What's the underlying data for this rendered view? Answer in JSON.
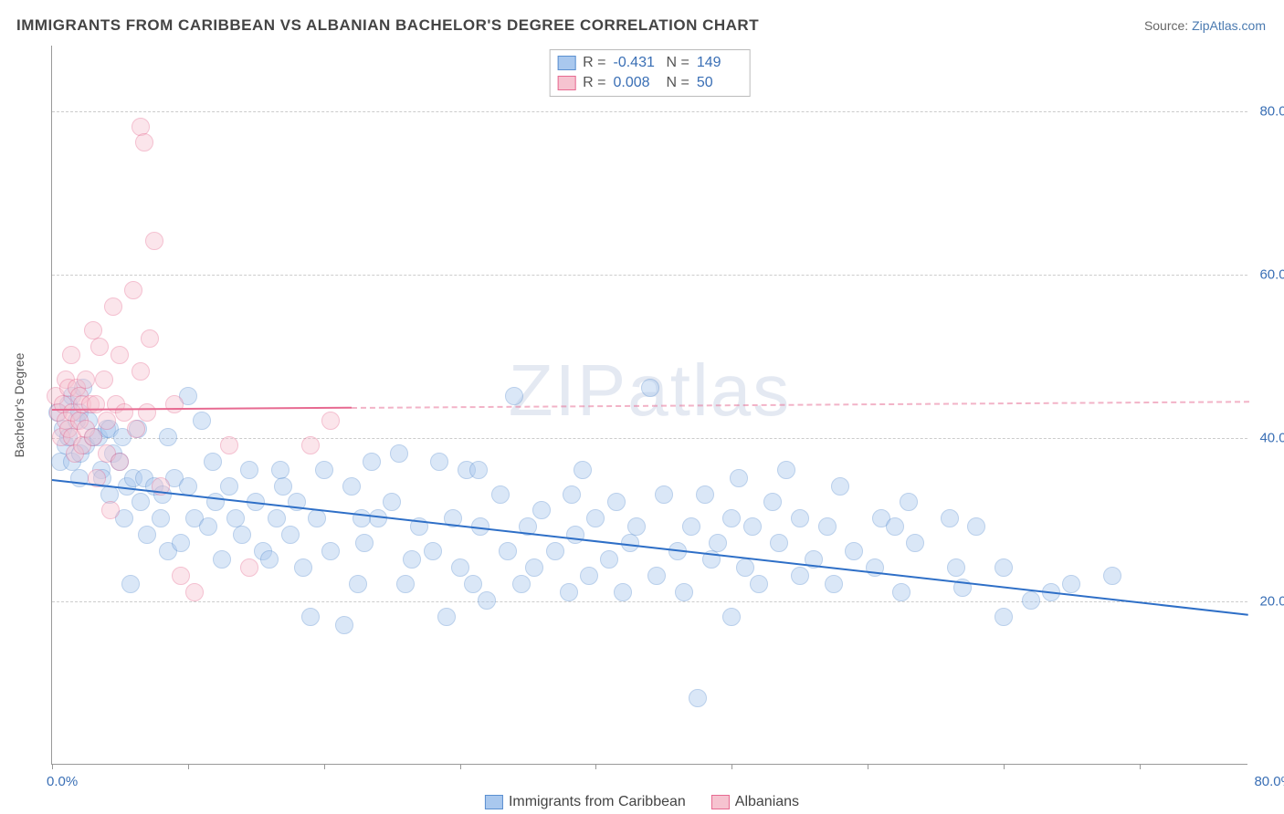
{
  "title": "IMMIGRANTS FROM CARIBBEAN VS ALBANIAN BACHELOR'S DEGREE CORRELATION CHART",
  "source_label": "Source:",
  "source_name": "ZipAtlas.com",
  "watermark": "ZIPatlas",
  "chart": {
    "type": "scatter",
    "y_axis_label": "Bachelor's Degree",
    "x_min": 0,
    "x_max": 88,
    "y_min": 0,
    "y_max": 88,
    "x_min_label": "0.0%",
    "x_max_label": "80.0%",
    "y_grid": [
      20,
      40,
      60,
      80
    ],
    "y_tick_labels": [
      "20.0%",
      "40.0%",
      "60.0%",
      "80.0%"
    ],
    "x_ticks": [
      0,
      10,
      20,
      30,
      40,
      50,
      60,
      70,
      80
    ],
    "marker_radius": 10,
    "marker_opacity": 0.42,
    "background_color": "#ffffff",
    "grid_color": "#cccccc",
    "axis_color": "#999999",
    "tick_label_color": "#3a6fb5",
    "series": [
      {
        "name": "Immigrants from Caribbean",
        "color_fill": "#a9c8ee",
        "color_stroke": "#5a8fd0",
        "R": "-0.431",
        "N": "149",
        "trend": {
          "x1": 0,
          "y1": 35,
          "x2": 88,
          "y2": 18.5,
          "color": "#2e6fc7",
          "solid_until_x": 88
        },
        "points": [
          [
            0.4,
            43
          ],
          [
            0.6,
            37
          ],
          [
            0.8,
            41
          ],
          [
            1.0,
            39
          ],
          [
            1.2,
            44
          ],
          [
            1.2,
            40
          ],
          [
            1.5,
            37
          ],
          [
            1.5,
            45
          ],
          [
            1.8,
            42
          ],
          [
            2.0,
            43
          ],
          [
            2.1,
            38
          ],
          [
            2.3,
            46
          ],
          [
            2.5,
            39
          ],
          [
            2.7,
            42
          ],
          [
            3.0,
            40
          ],
          [
            2.0,
            35
          ],
          [
            3.4,
            40
          ],
          [
            3.6,
            36
          ],
          [
            4.0,
            41
          ],
          [
            4.2,
            41
          ],
          [
            4.5,
            38
          ],
          [
            5.0,
            37
          ],
          [
            5.3,
            30
          ],
          [
            5.5,
            34
          ],
          [
            5.8,
            22
          ],
          [
            5.2,
            40
          ],
          [
            6.0,
            35
          ],
          [
            6.5,
            32
          ],
          [
            7.0,
            28
          ],
          [
            6.8,
            35
          ],
          [
            7.5,
            34
          ],
          [
            8.0,
            30
          ],
          [
            8.5,
            26
          ],
          [
            8.5,
            40
          ],
          [
            9.0,
            35
          ],
          [
            9.5,
            27
          ],
          [
            10.0,
            34
          ],
          [
            10.0,
            45
          ],
          [
            10.5,
            30
          ],
          [
            11.0,
            42
          ],
          [
            11.5,
            29
          ],
          [
            12.0,
            32
          ],
          [
            12.5,
            25
          ],
          [
            13.0,
            34
          ],
          [
            13.5,
            30
          ],
          [
            14.0,
            28
          ],
          [
            14.5,
            36
          ],
          [
            15.0,
            32
          ],
          [
            15.5,
            26
          ],
          [
            16.0,
            25
          ],
          [
            16.5,
            30
          ],
          [
            17.0,
            34
          ],
          [
            17.5,
            28
          ],
          [
            18.0,
            32
          ],
          [
            18.5,
            24
          ],
          [
            19.0,
            18
          ],
          [
            19.5,
            30
          ],
          [
            20.0,
            36
          ],
          [
            20.5,
            26
          ],
          [
            21.5,
            17
          ],
          [
            22.0,
            34
          ],
          [
            22.5,
            22
          ],
          [
            23.0,
            27
          ],
          [
            23.5,
            37
          ],
          [
            24.0,
            30
          ],
          [
            25.0,
            32
          ],
          [
            25.5,
            38
          ],
          [
            26.0,
            22
          ],
          [
            26.5,
            25
          ],
          [
            27.0,
            29
          ],
          [
            28.0,
            26
          ],
          [
            28.5,
            37
          ],
          [
            29.0,
            18
          ],
          [
            29.5,
            30
          ],
          [
            30.0,
            24
          ],
          [
            30.5,
            36
          ],
          [
            31.0,
            22
          ],
          [
            31.5,
            29
          ],
          [
            32.0,
            20
          ],
          [
            33.0,
            33
          ],
          [
            33.5,
            26
          ],
          [
            34.0,
            45
          ],
          [
            34.5,
            22
          ],
          [
            35.0,
            29
          ],
          [
            35.5,
            24
          ],
          [
            36.0,
            31
          ],
          [
            37.0,
            26
          ],
          [
            38.0,
            21
          ],
          [
            38.5,
            28
          ],
          [
            39.0,
            36
          ],
          [
            39.5,
            23
          ],
          [
            40.0,
            30
          ],
          [
            41.0,
            25
          ],
          [
            41.5,
            32
          ],
          [
            42.0,
            21
          ],
          [
            42.5,
            27
          ],
          [
            43.0,
            29
          ],
          [
            44.0,
            46
          ],
          [
            44.5,
            23
          ],
          [
            45.0,
            33
          ],
          [
            46.0,
            26
          ],
          [
            46.5,
            21
          ],
          [
            47.0,
            29
          ],
          [
            47.5,
            8
          ],
          [
            48.0,
            33
          ],
          [
            48.5,
            25
          ],
          [
            49.0,
            27
          ],
          [
            50.0,
            30
          ],
          [
            50.0,
            18
          ],
          [
            50.5,
            35
          ],
          [
            51.0,
            24
          ],
          [
            51.5,
            29
          ],
          [
            52.0,
            22
          ],
          [
            53.0,
            32
          ],
          [
            53.5,
            27
          ],
          [
            54.0,
            36
          ],
          [
            55.0,
            23
          ],
          [
            55.0,
            30
          ],
          [
            56.0,
            25
          ],
          [
            57.0,
            29
          ],
          [
            57.5,
            22
          ],
          [
            58.0,
            34
          ],
          [
            59.0,
            26
          ],
          [
            61.0,
            30
          ],
          [
            60.5,
            24
          ],
          [
            62.0,
            29
          ],
          [
            62.5,
            21
          ],
          [
            63.0,
            32
          ],
          [
            63.5,
            27
          ],
          [
            66.0,
            30
          ],
          [
            66.5,
            24
          ],
          [
            67.0,
            21.5
          ],
          [
            68.0,
            29
          ],
          [
            70.0,
            18
          ],
          [
            70.0,
            24
          ],
          [
            72.0,
            20
          ],
          [
            73.5,
            21
          ],
          [
            75.0,
            22
          ],
          [
            78.0,
            23
          ],
          [
            3.7,
            35
          ],
          [
            4.2,
            33
          ],
          [
            6.3,
            41
          ],
          [
            8.1,
            33
          ],
          [
            11.8,
            37
          ],
          [
            16.8,
            36
          ],
          [
            22.8,
            30
          ],
          [
            31.4,
            36
          ],
          [
            38.2,
            33
          ]
        ]
      },
      {
        "name": "Albanians",
        "color_fill": "#f6c3d0",
        "color_stroke": "#e76a91",
        "R": "0.008",
        "N": "50",
        "trend": {
          "x1": 0,
          "y1": 43.5,
          "x2": 88,
          "y2": 44.5,
          "color": "#e76a91",
          "solid_until_x": 22
        },
        "points": [
          [
            0.3,
            45
          ],
          [
            0.5,
            43
          ],
          [
            0.7,
            40
          ],
          [
            0.8,
            44
          ],
          [
            1.0,
            47
          ],
          [
            1.0,
            42
          ],
          [
            1.2,
            46
          ],
          [
            1.2,
            41
          ],
          [
            1.4,
            50
          ],
          [
            1.5,
            43
          ],
          [
            1.5,
            40
          ],
          [
            1.7,
            38
          ],
          [
            1.8,
            46
          ],
          [
            2.0,
            45
          ],
          [
            2.0,
            42
          ],
          [
            2.2,
            44
          ],
          [
            2.2,
            39
          ],
          [
            2.5,
            47
          ],
          [
            2.5,
            41
          ],
          [
            2.8,
            44
          ],
          [
            3.0,
            53
          ],
          [
            3.0,
            40
          ],
          [
            3.2,
            44
          ],
          [
            3.3,
            35
          ],
          [
            3.5,
            51
          ],
          [
            3.8,
            47
          ],
          [
            4.0,
            42
          ],
          [
            4.0,
            38
          ],
          [
            4.3,
            31
          ],
          [
            4.5,
            56
          ],
          [
            4.7,
            44
          ],
          [
            5.0,
            50
          ],
          [
            5.0,
            37
          ],
          [
            5.3,
            43
          ],
          [
            6.0,
            58
          ],
          [
            6.2,
            41
          ],
          [
            6.5,
            48
          ],
          [
            6.5,
            78
          ],
          [
            6.8,
            76
          ],
          [
            7.0,
            43
          ],
          [
            7.2,
            52
          ],
          [
            7.5,
            64
          ],
          [
            8.0,
            34
          ],
          [
            9.0,
            44
          ],
          [
            9.5,
            23
          ],
          [
            10.5,
            21
          ],
          [
            13.0,
            39
          ],
          [
            14.5,
            24
          ],
          [
            19.0,
            39
          ],
          [
            20.5,
            42
          ]
        ]
      }
    ],
    "legend_bottom": [
      {
        "swatch_fill": "#a9c8ee",
        "swatch_stroke": "#5a8fd0",
        "label": "Immigrants from Caribbean"
      },
      {
        "swatch_fill": "#f6c3d0",
        "swatch_stroke": "#e76a91",
        "label": "Albanians"
      }
    ]
  }
}
